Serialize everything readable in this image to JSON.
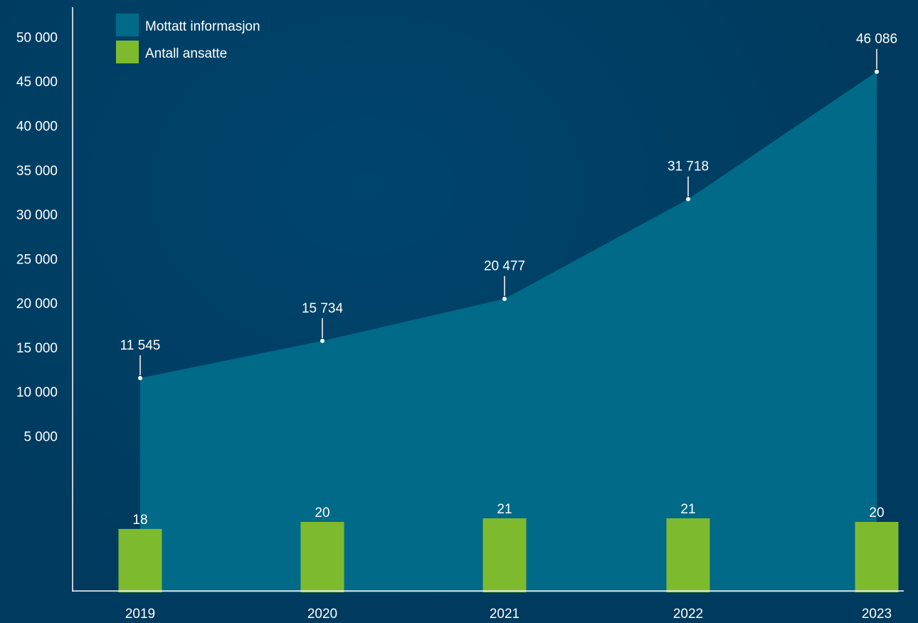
{
  "chart_data": {
    "type": "area",
    "categories": [
      "2019",
      "2020",
      "2021",
      "2022",
      "2023"
    ],
    "series": [
      {
        "name": "Mottatt informasjon",
        "chart_type": "area",
        "color": "#006a88",
        "values": [
          11545,
          15734,
          20477,
          31718,
          46086
        ],
        "labels": [
          "11 545",
          "15 734",
          "20 477",
          "31 718",
          "46 086"
        ]
      },
      {
        "name": "Antall ansatte",
        "chart_type": "bar",
        "color": "#7eba2d",
        "values": [
          18,
          20,
          21,
          21,
          20
        ],
        "labels": [
          "18",
          "20",
          "21",
          "21",
          "20"
        ]
      }
    ],
    "y_ticks": [
      "5 000",
      "10 000",
      "15 000",
      "20 000",
      "25 000",
      "30 000",
      "35 000",
      "40 000",
      "45 000",
      "50 000"
    ],
    "y_tick_values": [
      5000,
      10000,
      15000,
      20000,
      25000,
      30000,
      35000,
      40000,
      45000,
      50000
    ],
    "ylim": [
      0,
      50000
    ],
    "title": "",
    "xlabel": "",
    "ylabel": "",
    "legend_position": "top-left",
    "grid": false,
    "background_color": "#003a5e",
    "axis_color": "#ffffff"
  }
}
